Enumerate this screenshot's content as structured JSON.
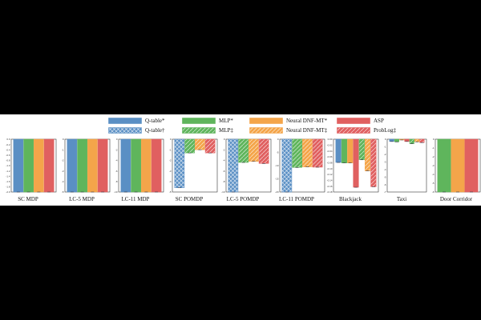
{
  "colors": {
    "blue": "#5a8fc4",
    "green": "#5fb55c",
    "orange": "#f4a54a",
    "red": "#e06060",
    "background": "#000000",
    "panel": "#ffffff"
  },
  "legend": [
    {
      "label": "Q-table*",
      "color": "#5a8fc4",
      "pattern": "solid"
    },
    {
      "label": "MLP*",
      "color": "#5fb55c",
      "pattern": "solid"
    },
    {
      "label": "Neural DNF-MT*",
      "color": "#f4a54a",
      "pattern": "solid"
    },
    {
      "label": "ASP",
      "color": "#e06060",
      "pattern": "solid"
    },
    {
      "label": "Q-table†",
      "color": "#5a8fc4",
      "pattern": "crosshatch"
    },
    {
      "label": "MLP‡",
      "color": "#5fb55c",
      "pattern": "hatch"
    },
    {
      "label": "Neural DNF-MT‡",
      "color": "#f4a54a",
      "pattern": "hatch"
    },
    {
      "label": "ProbLog‡",
      "color": "#e06060",
      "pattern": "hatch"
    }
  ],
  "chart_data": [
    {
      "type": "bar",
      "title": "SC MDP",
      "ylim": [
        -2.0,
        0.0
      ],
      "yticks": [
        "0.0",
        "-0.2",
        "-0.4",
        "-0.6",
        "-0.8",
        "-1.0",
        "-1.2",
        "-1.4",
        "-1.6",
        "-1.8",
        "-2.0"
      ],
      "series": [
        {
          "color": "#5a8fc4",
          "pattern": "solid",
          "value": -2.0
        },
        {
          "color": "#5fb55c",
          "pattern": "solid",
          "value": -2.0
        },
        {
          "color": "#f4a54a",
          "pattern": "solid",
          "value": -2.0
        },
        {
          "color": "#e06060",
          "pattern": "solid",
          "value": -2.0
        }
      ]
    },
    {
      "type": "bar",
      "title": "LC-5 MDP",
      "ylim": [
        -5.0,
        0.0
      ],
      "yticks": [
        "0",
        "-1",
        "-2",
        "-3",
        "-4",
        "-5"
      ],
      "series": [
        {
          "color": "#5a8fc4",
          "pattern": "solid",
          "value": -5.0
        },
        {
          "color": "#5fb55c",
          "pattern": "solid",
          "value": -5.0
        },
        {
          "color": "#f4a54a",
          "pattern": "solid",
          "value": -5.0
        },
        {
          "color": "#e06060",
          "pattern": "solid",
          "value": -5.0
        }
      ]
    },
    {
      "type": "bar",
      "title": "LC-11 MDP",
      "ylim": [
        -10.0,
        0.0
      ],
      "yticks": [
        "0",
        "-2",
        "-4",
        "-6",
        "-8",
        "-10"
      ],
      "series": [
        {
          "color": "#5a8fc4",
          "pattern": "solid",
          "value": -10.0
        },
        {
          "color": "#5fb55c",
          "pattern": "solid",
          "value": -10.0
        },
        {
          "color": "#f4a54a",
          "pattern": "solid",
          "value": -10.0
        },
        {
          "color": "#e06060",
          "pattern": "solid",
          "value": -10.0
        }
      ]
    },
    {
      "type": "bar",
      "title": "SC POMDP",
      "ylim": [
        -5.0,
        0.0
      ],
      "yticks": [
        "0",
        "-1",
        "-2",
        "-3",
        "-4",
        "-5"
      ],
      "series": [
        {
          "color": "#5a8fc4",
          "pattern": "crosshatch",
          "value": -4.6
        },
        {
          "color": "#5fb55c",
          "pattern": "hatch",
          "value": -1.3
        },
        {
          "color": "#f4a54a",
          "pattern": "hatch",
          "value": -1.0
        },
        {
          "color": "#e06060",
          "pattern": "hatch",
          "value": -1.3
        }
      ]
    },
    {
      "type": "bar",
      "title": "LC-5 POMDP",
      "ylim": [
        -10.0,
        0.0
      ],
      "yticks": [
        "0",
        "-2",
        "-4",
        "-6",
        "-8",
        "-10"
      ],
      "series": [
        {
          "color": "#5a8fc4",
          "pattern": "crosshatch",
          "value": -10.0
        },
        {
          "color": "#5fb55c",
          "pattern": "hatch",
          "value": -4.4
        },
        {
          "color": "#f4a54a",
          "pattern": "hatch",
          "value": -4.2
        },
        {
          "color": "#e06060",
          "pattern": "hatch",
          "value": -4.6
        }
      ]
    },
    {
      "type": "bar",
      "title": "LC-11 POMDP",
      "ylim": [
        -20.0,
        0.0
      ],
      "yticks": [
        "0",
        "-5",
        "-10",
        "-15",
        "-20"
      ],
      "series": [
        {
          "color": "#5a8fc4",
          "pattern": "crosshatch",
          "value": -20.0
        },
        {
          "color": "#5fb55c",
          "pattern": "hatch",
          "value": -10.7
        },
        {
          "color": "#f4a54a",
          "pattern": "hatch",
          "value": -10.5
        },
        {
          "color": "#e06060",
          "pattern": "hatch",
          "value": -10.6
        }
      ]
    },
    {
      "type": "bar",
      "title": "Blackjack",
      "ylim": [
        -0.2,
        0.0
      ],
      "yticks": [
        "0.00",
        "-0.02",
        "-0.04",
        "-0.06",
        "-0.08",
        "-0.10",
        "-0.12",
        "-0.14",
        "-0.16",
        "-0.18"
      ],
      "series": [
        {
          "color": "#5a8fc4",
          "pattern": "solid",
          "value": -0.088
        },
        {
          "color": "#5fb55c",
          "pattern": "solid",
          "value": -0.09
        },
        {
          "color": "#f4a54a",
          "pattern": "solid",
          "value": -0.09
        },
        {
          "color": "#e06060",
          "pattern": "solid",
          "value": -0.182
        },
        {
          "color": "#5fb55c",
          "pattern": "hatch",
          "value": -0.078
        },
        {
          "color": "#f4a54a",
          "pattern": "hatch",
          "value": -0.12
        },
        {
          "color": "#e06060",
          "pattern": "hatch",
          "value": -0.18
        }
      ]
    },
    {
      "type": "bar",
      "title": "Taxi",
      "ylim": [
        -7,
        0
      ],
      "yticks": [
        "0",
        "-1",
        "-2",
        "-3",
        "-4",
        "-5",
        "-6",
        "-7"
      ],
      "series": [
        {
          "color": "#5a8fc4",
          "pattern": "solid",
          "value": -0.3
        },
        {
          "color": "#5fb55c",
          "pattern": "solid",
          "value": -0.35
        },
        {
          "color": "#f4a54a",
          "pattern": "solid",
          "value": -0.1
        },
        {
          "color": "#e06060",
          "pattern": "solid",
          "value": -0.3
        },
        {
          "color": "#5fb55c",
          "pattern": "hatch",
          "value": -0.6
        },
        {
          "color": "#f4a54a",
          "pattern": "hatch",
          "value": -0.35
        },
        {
          "color": "#e06060",
          "pattern": "hatch",
          "value": -0.45
        }
      ]
    },
    {
      "type": "bar",
      "title": "Door Corridor",
      "ylim": [
        -6,
        0
      ],
      "yticks": [
        "0",
        "-1",
        "-2",
        "-3",
        "-4",
        "-5",
        "-6"
      ],
      "series": [
        {
          "color": "#5fb55c",
          "pattern": "solid",
          "value": -6
        },
        {
          "color": "#f4a54a",
          "pattern": "solid",
          "value": -6
        },
        {
          "color": "#e06060",
          "pattern": "solid",
          "value": -6
        }
      ]
    }
  ]
}
